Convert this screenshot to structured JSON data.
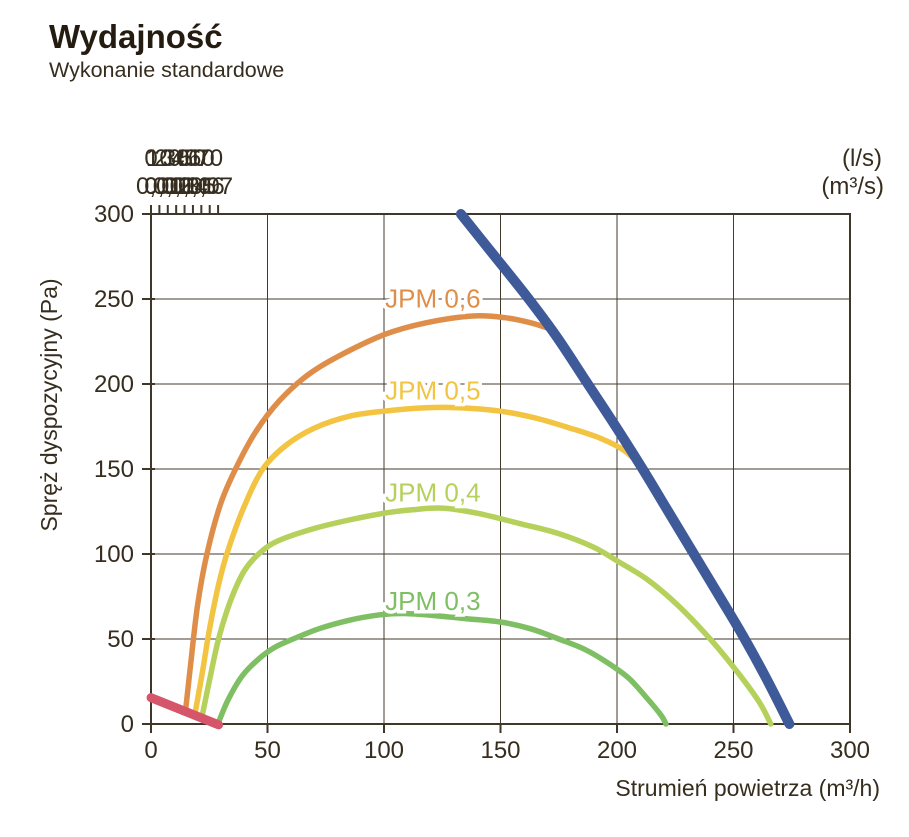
{
  "page": {
    "title": "Wydajność",
    "subtitle": "Wykonanie standardowe"
  },
  "colors": {
    "title_text": "#241c10",
    "axis_text": "#362d1e",
    "axis_line": "#3f372a",
    "grid_line": "#433b2e",
    "background": "#ffffff"
  },
  "chart_data": {
    "type": "line",
    "title": "Wydajność",
    "subtitle": "Wykonanie standardowe",
    "xlabel": "Strumień powietrza (m³/h)",
    "ylabel": "Spręż dyspozycyjny (Pa)",
    "grid": "on",
    "x_axis_bottom": {
      "unit": "m³/h",
      "min": 0,
      "max": 300,
      "ticks": [
        0,
        50,
        100,
        150,
        200,
        250,
        300
      ],
      "tick_labels": [
        "0",
        "50",
        "100",
        "150",
        "200",
        "250",
        "300"
      ]
    },
    "x_axis_top": {
      "unit_row1": "(l/s)",
      "unit_row2": "(m³/s)",
      "ls_per_m3h": 0.2778,
      "ticks_ls": [
        0,
        10,
        20,
        30,
        40,
        50,
        60,
        70,
        80
      ],
      "tick_labels_ls": [
        "0",
        "10",
        "20",
        "30",
        "40",
        "50",
        "60",
        "70",
        ""
      ],
      "tick_labels_m3s": [
        "0",
        "0,01",
        "0,02",
        "0,03",
        "0,04",
        "0,05",
        "0,06",
        "0,07",
        ""
      ]
    },
    "y_axis": {
      "unit": "Pa",
      "min": 0,
      "max": 300,
      "ticks": [
        0,
        50,
        100,
        150,
        200,
        250,
        300
      ],
      "tick_labels": [
        "0",
        "50",
        "100",
        "150",
        "200",
        "250",
        "300"
      ]
    },
    "series": [
      {
        "name": "jpm-0-6",
        "label": "JPM 0,6",
        "color": "#df8e49",
        "width": 5.5,
        "points": [
          [
            15,
            10
          ],
          [
            17,
            35
          ],
          [
            20,
            70
          ],
          [
            24,
            100
          ],
          [
            30,
            130
          ],
          [
            37,
            152
          ],
          [
            45,
            172
          ],
          [
            55,
            190
          ],
          [
            67,
            205
          ],
          [
            80,
            216
          ],
          [
            100,
            229
          ],
          [
            118,
            236
          ],
          [
            138,
            240
          ],
          [
            152,
            239
          ],
          [
            163,
            236
          ],
          [
            170,
            233
          ]
        ]
      },
      {
        "name": "jpm-0-5",
        "label": "JPM 0,5",
        "color": "#f2c441",
        "width": 5.5,
        "points": [
          [
            19,
            7
          ],
          [
            22,
            30
          ],
          [
            25,
            55
          ],
          [
            29,
            82
          ],
          [
            33,
            102
          ],
          [
            40,
            128
          ],
          [
            48,
            150
          ],
          [
            58,
            164
          ],
          [
            70,
            174
          ],
          [
            85,
            181
          ],
          [
            100,
            184
          ],
          [
            118,
            186
          ],
          [
            132,
            186
          ],
          [
            150,
            184
          ],
          [
            165,
            180
          ],
          [
            180,
            174
          ],
          [
            193,
            168
          ],
          [
            203,
            161
          ],
          [
            211,
            151
          ]
        ]
      },
      {
        "name": "jpm-0-4",
        "label": "JPM 0,4",
        "color": "#b5d15b",
        "width": 5.5,
        "points": [
          [
            22,
            5
          ],
          [
            25,
            25
          ],
          [
            29,
            50
          ],
          [
            34,
            72
          ],
          [
            40,
            90
          ],
          [
            47,
            101
          ],
          [
            55,
            108
          ],
          [
            70,
            115
          ],
          [
            85,
            120
          ],
          [
            100,
            124
          ],
          [
            112,
            126
          ],
          [
            125,
            127
          ],
          [
            140,
            124
          ],
          [
            158,
            118
          ],
          [
            175,
            112
          ],
          [
            190,
            104
          ],
          [
            200,
            96
          ],
          [
            213,
            85
          ],
          [
            226,
            70
          ],
          [
            240,
            50
          ],
          [
            252,
            30
          ],
          [
            261,
            13
          ],
          [
            266,
            0
          ]
        ]
      },
      {
        "name": "jpm-0-3",
        "label": "JPM 0,3",
        "color": "#7fbf63",
        "width": 5.5,
        "points": [
          [
            29,
            1
          ],
          [
            33,
            14
          ],
          [
            39,
            28
          ],
          [
            46,
            38
          ],
          [
            53,
            45
          ],
          [
            61,
            50
          ],
          [
            72,
            56
          ],
          [
            85,
            61
          ],
          [
            97,
            64
          ],
          [
            108,
            65
          ],
          [
            120,
            64
          ],
          [
            135,
            62
          ],
          [
            150,
            60
          ],
          [
            163,
            56
          ],
          [
            175,
            50
          ],
          [
            186,
            44
          ],
          [
            196,
            36
          ],
          [
            205,
            27
          ],
          [
            213,
            15
          ],
          [
            219,
            5
          ],
          [
            221,
            0
          ]
        ]
      },
      {
        "name": "max-limit-curve",
        "label": "",
        "color": "#3e5a99",
        "width": 10,
        "points": [
          [
            133,
            300
          ],
          [
            147,
            276
          ],
          [
            161,
            252
          ],
          [
            174,
            228
          ],
          [
            187,
            201
          ],
          [
            199,
            176
          ],
          [
            211,
            150
          ],
          [
            222,
            125
          ],
          [
            233,
            100
          ],
          [
            244,
            75
          ],
          [
            254,
            52
          ],
          [
            264,
            27
          ],
          [
            274,
            0
          ]
        ]
      },
      {
        "name": "min-limit-line",
        "label": "",
        "color": "#d5566b",
        "width": 9,
        "points": [
          [
            0,
            15.5
          ],
          [
            29,
            -0.5
          ]
        ]
      }
    ],
    "curve_labels": [
      {
        "text": "JPM 0,6",
        "x": 100.5,
        "y_pa": 245,
        "color": "#df8e49"
      },
      {
        "text": "JPM 0,5",
        "x": 100.5,
        "y_pa": 191,
        "color": "#f2c441"
      },
      {
        "text": "JPM 0,4",
        "x": 100.5,
        "y_pa": 131,
        "color": "#b5d15b"
      },
      {
        "text": "JPM 0,3",
        "x": 100.5,
        "y_pa": 67,
        "color": "#7fbf63"
      }
    ]
  }
}
